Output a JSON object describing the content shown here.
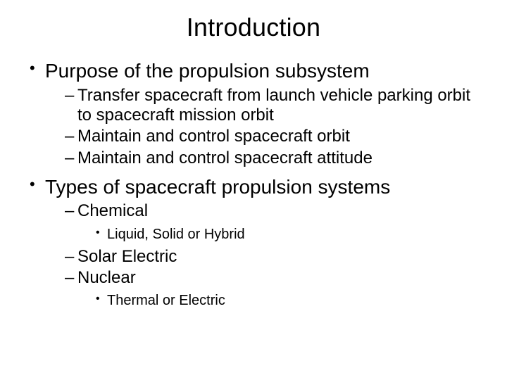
{
  "slide": {
    "title": "Introduction",
    "background_color": "#ffffff",
    "text_color": "#000000",
    "title_fontsize": 36,
    "lvl1_fontsize": 28,
    "lvl2_fontsize": 24,
    "lvl3_fontsize": 20,
    "items": [
      {
        "text": "Purpose of the propulsion subsystem",
        "sub": [
          {
            "text": "Transfer spacecraft from launch vehicle parking orbit to spacecraft mission orbit"
          },
          {
            "text": "Maintain and control spacecraft orbit"
          },
          {
            "text": "Maintain and control spacecraft attitude"
          }
        ]
      },
      {
        "text": "Types of spacecraft propulsion systems",
        "sub": [
          {
            "text": "Chemical",
            "sub": [
              {
                "text": "Liquid, Solid or Hybrid"
              }
            ]
          },
          {
            "text": "Solar Electric"
          },
          {
            "text": "Nuclear",
            "sub": [
              {
                "text": "Thermal or Electric"
              }
            ]
          }
        ]
      }
    ]
  }
}
